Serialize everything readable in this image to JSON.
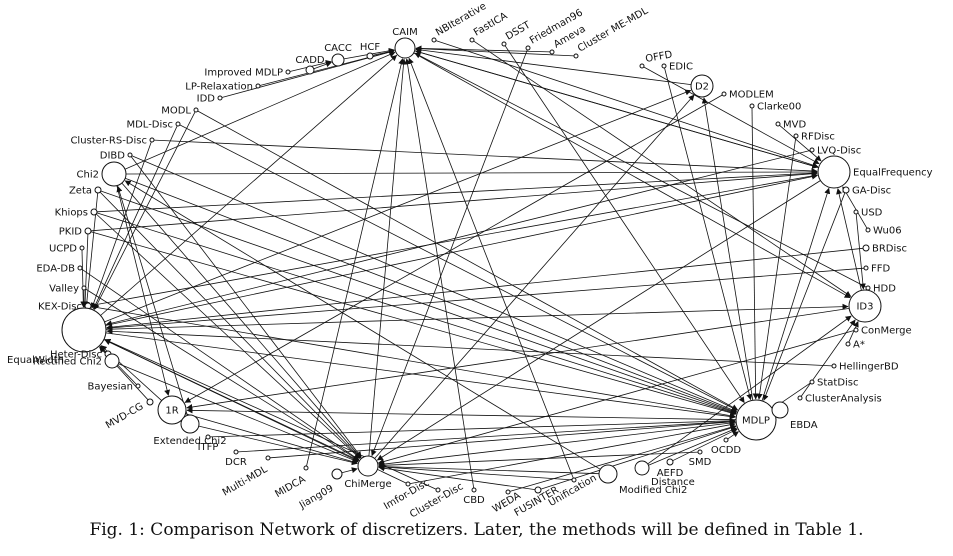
{
  "caption": "Fig. 1: Comparison Network of discretizers. Later, the methods will be defined in Table 1.",
  "nodes": [
    {
      "id": "CAIM",
      "label": "CAIM"
    },
    {
      "id": "HCF",
      "label": "HCF"
    },
    {
      "id": "CACC",
      "label": "CACC"
    },
    {
      "id": "CADD",
      "label": "CADD"
    },
    {
      "id": "Improved MDLP",
      "label": "Improved MDLP"
    },
    {
      "id": "LP-Relaxation",
      "label": "LP-Relaxation"
    },
    {
      "id": "IDD",
      "label": "IDD"
    },
    {
      "id": "MODL",
      "label": "MODL"
    },
    {
      "id": "MDL-Disc",
      "label": "MDL-Disc"
    },
    {
      "id": "Cluster-RS-Disc",
      "label": "Cluster-RS-Disc"
    },
    {
      "id": "DIBD",
      "label": "DIBD"
    },
    {
      "id": "Chi2",
      "label": "Chi2"
    },
    {
      "id": "Zeta",
      "label": "Zeta"
    },
    {
      "id": "Khiops",
      "label": "Khiops"
    },
    {
      "id": "PKID",
      "label": "PKID"
    },
    {
      "id": "UCPD",
      "label": "UCPD"
    },
    {
      "id": "EDA-DB",
      "label": "EDA-DB"
    },
    {
      "id": "Valley",
      "label": "Valley"
    },
    {
      "id": "KEX-Disc",
      "label": "KEX-Disc"
    },
    {
      "id": "EqualWidth",
      "label": "EqualWidth"
    },
    {
      "id": "Heter-Disc",
      "label": "Heter-Disc"
    },
    {
      "id": "Rectified Chi2",
      "label": "Rectified Chi2"
    },
    {
      "id": "Bayesian",
      "label": "Bayesian"
    },
    {
      "id": "MVD-CG",
      "label": "MVD-CG"
    },
    {
      "id": "1R",
      "label": "1R"
    },
    {
      "id": "Extended Chi2",
      "label": "Extended Chi2"
    },
    {
      "id": "ITFP",
      "label": "ITFP"
    },
    {
      "id": "DCR",
      "label": "DCR"
    },
    {
      "id": "Multi-MDL",
      "label": "Multi-MDL"
    },
    {
      "id": "MIDCA",
      "label": "MIDCA"
    },
    {
      "id": "Jiang09",
      "label": "Jiang09"
    },
    {
      "id": "ChiMerge",
      "label": "ChiMerge"
    },
    {
      "id": "Imfor-Disc",
      "label": "Imfor-Disc"
    },
    {
      "id": "Cluster-Disc",
      "label": "Cluster-Disc"
    },
    {
      "id": "CBD",
      "label": "CBD"
    },
    {
      "id": "WEDA",
      "label": "WEDA"
    },
    {
      "id": "FUSINTER",
      "label": "FUSINTER"
    },
    {
      "id": "Unification",
      "label": "Unification"
    },
    {
      "id": "Modified Chi2",
      "label": "Modified Chi2"
    },
    {
      "id": "Distance",
      "label": "Distance"
    },
    {
      "id": "AEFD",
      "label": "AEFD"
    },
    {
      "id": "SMD",
      "label": "SMD"
    },
    {
      "id": "OCDD",
      "label": "OCDD"
    },
    {
      "id": "MDLP",
      "label": "MDLP"
    },
    {
      "id": "EBDA",
      "label": "EBDA"
    },
    {
      "id": "ClusterAnalysis",
      "label": "ClusterAnalysis"
    },
    {
      "id": "StatDisc",
      "label": "StatDisc"
    },
    {
      "id": "HellingerBD",
      "label": "HellingerBD"
    },
    {
      "id": "A*",
      "label": "A*"
    },
    {
      "id": "ConMerge",
      "label": "ConMerge"
    },
    {
      "id": "ID3",
      "label": "ID3"
    },
    {
      "id": "HDD",
      "label": "HDD"
    },
    {
      "id": "FFD",
      "label": "FFD"
    },
    {
      "id": "BRDisc",
      "label": "BRDisc"
    },
    {
      "id": "Wu06",
      "label": "Wu06"
    },
    {
      "id": "USD",
      "label": "USD"
    },
    {
      "id": "GA-Disc",
      "label": "GA-Disc"
    },
    {
      "id": "EqualFrequency",
      "label": "EqualFrequency"
    },
    {
      "id": "LVQ-Disc",
      "label": "LVQ-Disc"
    },
    {
      "id": "RFDisc",
      "label": "RFDisc"
    },
    {
      "id": "MVD",
      "label": "MVD"
    },
    {
      "id": "Clarke00",
      "label": "Clarke00"
    },
    {
      "id": "MODLEM",
      "label": "MODLEM"
    },
    {
      "id": "D2",
      "label": "D2"
    },
    {
      "id": "EDIC",
      "label": "EDIC"
    },
    {
      "id": "OFFD",
      "label": "OFFD"
    },
    {
      "id": "Cluster ME-MDL",
      "label": "Cluster ME-MDL"
    },
    {
      "id": "Ameva",
      "label": "Ameva"
    },
    {
      "id": "Friedman96",
      "label": "Friedman96"
    },
    {
      "id": "DSST",
      "label": "DSST"
    },
    {
      "id": "FastICA",
      "label": "FastICA"
    },
    {
      "id": "NBIterative",
      "label": "NBIterative"
    }
  ],
  "edges": [
    [
      "HCF",
      "CAIM"
    ],
    [
      "CACC",
      "CAIM"
    ],
    [
      "CADD",
      "CACC"
    ],
    [
      "Improved MDLP",
      "CACC"
    ],
    [
      "LP-Relaxation",
      "CAIM"
    ],
    [
      "IDD",
      "CAIM"
    ],
    [
      "MODL",
      "EqualWidth"
    ],
    [
      "MODL",
      "MDLP"
    ],
    [
      "MDL-Disc",
      "MDLP"
    ],
    [
      "MDL-Disc",
      "EqualWidth"
    ],
    [
      "Cluster-RS-Disc",
      "EqualFrequency"
    ],
    [
      "Cluster-RS-Disc",
      "EqualWidth"
    ],
    [
      "DIBD",
      "ChiMerge"
    ],
    [
      "DIBD",
      "MDLP"
    ],
    [
      "Chi2",
      "ChiMerge"
    ],
    [
      "Chi2",
      "EqualFrequency"
    ],
    [
      "Chi2",
      "CAIM"
    ],
    [
      "Chi2",
      "1R"
    ],
    [
      "Zeta",
      "ChiMerge"
    ],
    [
      "Zeta",
      "EqualWidth"
    ],
    [
      "Khiops",
      "ChiMerge"
    ],
    [
      "Khiops",
      "EqualFrequency"
    ],
    [
      "PKID",
      "EqualFrequency"
    ],
    [
      "PKID",
      "EqualWidth"
    ],
    [
      "UCPD",
      "EqualWidth"
    ],
    [
      "EDA-DB",
      "ChiMerge"
    ],
    [
      "Valley",
      "EqualWidth"
    ],
    [
      "KEX-Disc",
      "EqualFrequency"
    ],
    [
      "EqualWidth",
      "EqualFrequency"
    ],
    [
      "EqualWidth",
      "MDLP"
    ],
    [
      "EqualWidth",
      "ID3"
    ],
    [
      "EqualWidth",
      "CAIM"
    ],
    [
      "EqualWidth",
      "ChiMerge"
    ],
    [
      "Heter-Disc",
      "EqualWidth"
    ],
    [
      "Rectified Chi2",
      "ChiMerge"
    ],
    [
      "Bayesian",
      "EqualWidth"
    ],
    [
      "MVD-CG",
      "EqualWidth"
    ],
    [
      "1R",
      "EqualWidth"
    ],
    [
      "Extended Chi2",
      "Chi2"
    ],
    [
      "Extended Chi2",
      "ChiMerge"
    ],
    [
      "ITFP",
      "MDLP"
    ],
    [
      "DCR",
      "MDLP"
    ],
    [
      "Multi-MDL",
      "MDLP"
    ],
    [
      "MIDCA",
      "CAIM"
    ],
    [
      "Jiang09",
      "ChiMerge"
    ],
    [
      "ChiMerge",
      "CAIM"
    ],
    [
      "ChiMerge",
      "D2"
    ],
    [
      "Imfor-Disc",
      "EqualWidth"
    ],
    [
      "Imfor-Disc",
      "MDLP"
    ],
    [
      "Cluster-Disc",
      "EqualWidth"
    ],
    [
      "CBD",
      "CAIM"
    ],
    [
      "WEDA",
      "MDLP"
    ],
    [
      "FUSINTER",
      "ChiMerge"
    ],
    [
      "FUSINTER",
      "MDLP"
    ],
    [
      "Unification",
      "CAIM"
    ],
    [
      "Unification",
      "ChiMerge"
    ],
    [
      "Modified Chi2",
      "Chi2"
    ],
    [
      "Modified Chi2",
      "ChiMerge"
    ],
    [
      "Distance",
      "MDLP"
    ],
    [
      "Distance",
      "ID3"
    ],
    [
      "AEFD",
      "MDLP"
    ],
    [
      "SMD",
      "ChiMerge"
    ],
    [
      "OCDD",
      "MDLP"
    ],
    [
      "MDLP",
      "ChiMerge"
    ],
    [
      "MDLP",
      "EqualFrequency"
    ],
    [
      "MDLP",
      "1R"
    ],
    [
      "MDLP",
      "D2"
    ],
    [
      "EBDA",
      "MDLP"
    ],
    [
      "ClusterAnalysis",
      "ID3"
    ],
    [
      "StatDisc",
      "MDLP"
    ],
    [
      "HellingerBD",
      "EqualWidth"
    ],
    [
      "A*",
      "ID3"
    ],
    [
      "ConMerge",
      "ChiMerge"
    ],
    [
      "ID3",
      "EqualFrequency"
    ],
    [
      "ID3",
      "1R"
    ],
    [
      "HDD",
      "CAIM"
    ],
    [
      "FFD",
      "EqualWidth"
    ],
    [
      "BRDisc",
      "EqualWidth"
    ],
    [
      "Wu06",
      "EqualFrequency"
    ],
    [
      "USD",
      "ID3"
    ],
    [
      "GA-Disc",
      "MDLP"
    ],
    [
      "EqualFrequency",
      "CAIM"
    ],
    [
      "EqualFrequency",
      "ChiMerge"
    ],
    [
      "LVQ-Disc",
      "EqualWidth"
    ],
    [
      "RFDisc",
      "MDLP"
    ],
    [
      "MVD",
      "EqualFrequency"
    ],
    [
      "Clarke00",
      "MDLP"
    ],
    [
      "MODLEM",
      "1R"
    ],
    [
      "D2",
      "CAIM"
    ],
    [
      "EDIC",
      "MDLP"
    ],
    [
      "OFFD",
      "EqualFrequency"
    ],
    [
      "Cluster ME-MDL",
      "CAIM"
    ],
    [
      "Ameva",
      "CAIM"
    ],
    [
      "Friedman96",
      "ChiMerge"
    ],
    [
      "DSST",
      "MDLP"
    ],
    [
      "FastICA",
      "ID3"
    ],
    [
      "NBIterative",
      "EqualFrequency"
    ],
    [
      "CAIM",
      "ID3"
    ],
    [
      "CAIM",
      "EqualFrequency"
    ],
    [
      "1R",
      "ChiMerge"
    ],
    [
      "Chi2",
      "MDLP"
    ],
    [
      "EqualWidth",
      "D2"
    ],
    [
      "Khiops",
      "MDLP"
    ],
    [
      "PKID",
      "MDLP"
    ],
    [
      "Zeta",
      "MDLP"
    ],
    [
      "KEX-Disc",
      "MDLP"
    ],
    [
      "Valley",
      "ChiMerge"
    ]
  ]
}
